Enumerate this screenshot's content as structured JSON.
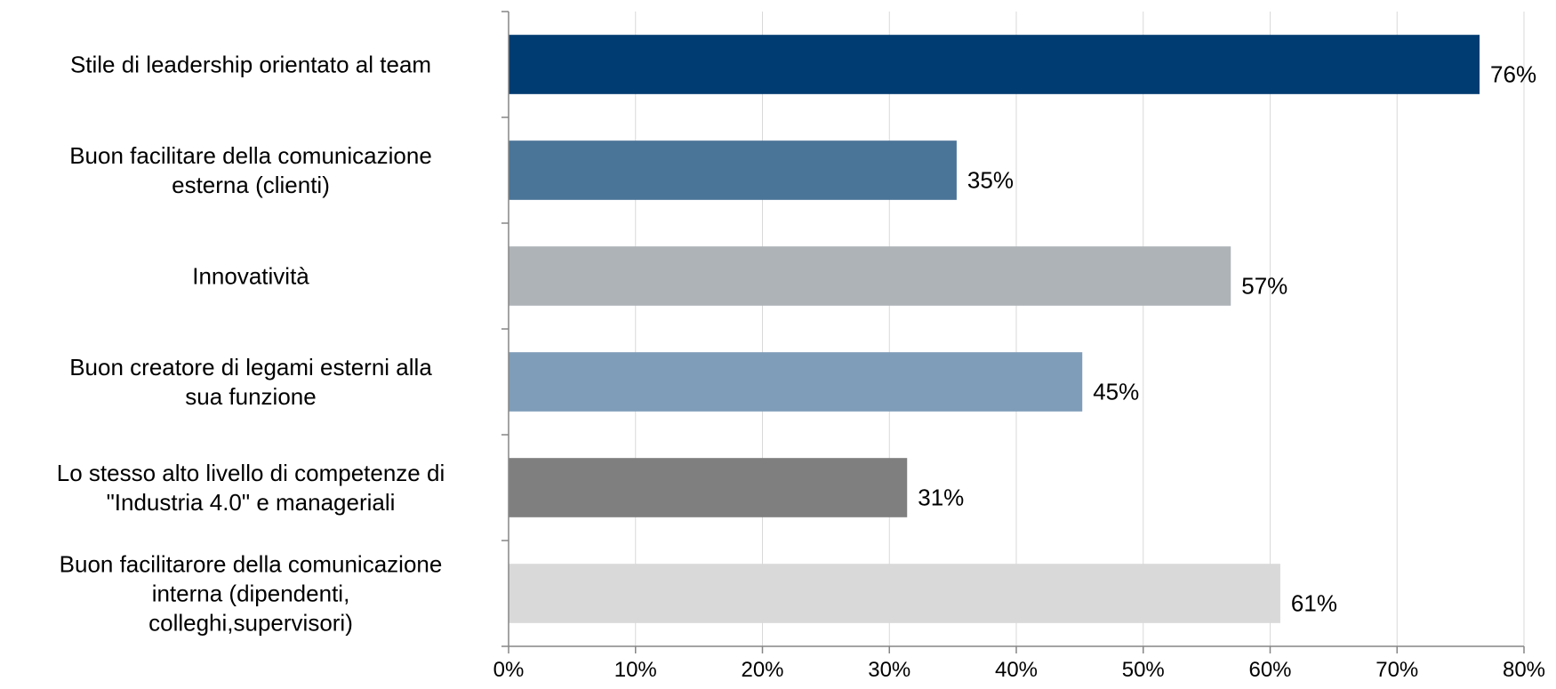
{
  "chart_data": {
    "type": "bar",
    "orientation": "horizontal",
    "title": "",
    "xlabel": "",
    "ylabel": "",
    "xlim": [
      0,
      0.8
    ],
    "x_ticks": [
      "0%",
      "10%",
      "20%",
      "30%",
      "40%",
      "50%",
      "60%",
      "70%",
      "80%"
    ],
    "grid": "vertical",
    "legend": "none",
    "categories": [
      [
        "Stile di leadership orientato al team"
      ],
      [
        "Buon facilitare della comunicazione",
        "esterna (clienti)"
      ],
      [
        "Innovatività"
      ],
      [
        "Buon creatore di legami esterni alla",
        "sua funzione"
      ],
      [
        "Lo stesso alto livello di competenze di",
        "\"Industria 4.0\" e manageriali"
      ],
      [
        "Buon facilitarore della comunicazione",
        "interna (dipendenti,",
        "colleghi,supervisori)"
      ]
    ],
    "values": [
      0.765,
      0.353,
      0.569,
      0.452,
      0.314,
      0.608
    ],
    "data_labels": [
      "76%",
      "35%",
      "57%",
      "45%",
      "31%",
      "61%"
    ],
    "colors": [
      "#003C71",
      "#4A7498",
      "#AEB3B7",
      "#7F9DB8",
      "#7F7F7F",
      "#D9D9D9"
    ]
  }
}
